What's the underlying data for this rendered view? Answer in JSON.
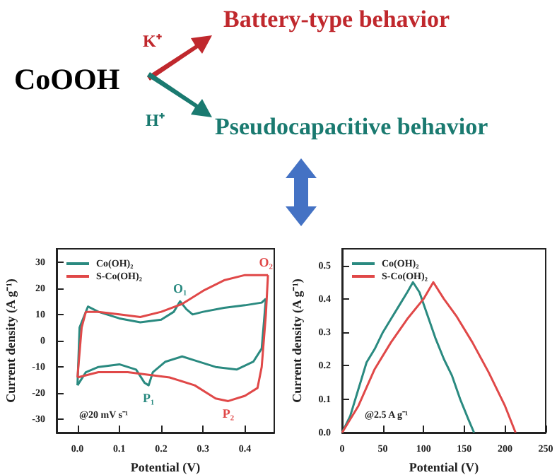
{
  "chart_data": [
    {
      "type": "line",
      "xlabel": "Potential (V)",
      "ylabel": "Current density (A g⁻¹)",
      "annotations": [
        "CoOOH",
        "K⁺",
        "H⁺",
        "Battery-type behavior",
        "Pseudocapacitive behavior",
        "@20 mV s⁻¹",
        {
          "text": "O₁",
          "x": 0.245,
          "y": 15
        },
        {
          "text": "O₂",
          "x": 0.45,
          "y": 25
        },
        {
          "text": "P₁",
          "x": 0.17,
          "y": -17
        },
        {
          "text": "P₂",
          "x": 0.36,
          "y": -23
        }
      ],
      "series": [
        {
          "name": "Co(OH)₂",
          "color": "#2a8a80",
          "x": [
            0.0,
            0.005,
            0.025,
            0.05,
            0.1,
            0.15,
            0.2,
            0.23,
            0.245,
            0.26,
            0.275,
            0.3,
            0.35,
            0.4,
            0.44,
            0.45
          ],
          "values": [
            -17,
            5,
            13,
            11,
            8.5,
            7,
            8,
            11,
            15,
            12,
            10,
            11,
            12.5,
            13.5,
            14.5,
            16
          ]
        },
        {
          "color": "#2a8a80",
          "x": [
            0.45,
            0.44,
            0.42,
            0.38,
            0.33,
            0.28,
            0.25,
            0.21,
            0.18,
            0.17,
            0.16,
            0.14,
            0.1,
            0.05,
            0.02,
            0.0
          ],
          "values": [
            16,
            -3,
            -8,
            -11,
            -10,
            -7.5,
            -6,
            -8,
            -12,
            -17,
            -16,
            -11,
            -9,
            -10,
            -12,
            -17
          ]
        },
        {
          "name": "S-Co(OH)₂",
          "color": "#e04848",
          "x": [
            0.0,
            0.01,
            0.02,
            0.05,
            0.1,
            0.15,
            0.2,
            0.25,
            0.3,
            0.35,
            0.4,
            0.45,
            0.455
          ],
          "values": [
            -14,
            5,
            11,
            11,
            10,
            9,
            11,
            14,
            19,
            23,
            25,
            25,
            25
          ]
        },
        {
          "color": "#e04848",
          "x": [
            0.455,
            0.45,
            0.44,
            0.43,
            0.4,
            0.36,
            0.33,
            0.28,
            0.22,
            0.17,
            0.12,
            0.05,
            0.0
          ],
          "values": [
            25,
            10,
            -10,
            -18,
            -21,
            -23,
            -22,
            -17,
            -14,
            -13,
            -12,
            -12,
            -14
          ]
        }
      ],
      "xlim": [
        -0.05,
        0.47
      ],
      "xticks": [
        {
          "value": 0,
          "label": "0.0"
        },
        0.1,
        0.2,
        0.3,
        0.4
      ],
      "ylim": [
        -35,
        35
      ],
      "yticks": [
        -30,
        -20,
        -10,
        0,
        10,
        20,
        30
      ],
      "legend": "top left",
      "marker": "none",
      "grid": false
    },
    {
      "type": "line",
      "xlabel": "Potential (V)",
      "ylabel": "Current density (A g⁻¹)",
      "annotations": [
        "@2.5 A g⁻¹"
      ],
      "series": [
        {
          "name": "Co(OH)₂",
          "color": "#2a8a80",
          "x": [
            0,
            10,
            20,
            30,
            40,
            50,
            60,
            70,
            80,
            87,
            95,
            105,
            115,
            125,
            135,
            145,
            155,
            162
          ],
          "values": [
            0,
            0.05,
            0.13,
            0.21,
            0.25,
            0.3,
            0.34,
            0.38,
            0.42,
            0.45,
            0.42,
            0.35,
            0.28,
            0.22,
            0.17,
            0.1,
            0.04,
            0
          ]
        },
        {
          "name": "S-Co(OH)₂",
          "color": "#e04848",
          "x": [
            0,
            20,
            40,
            60,
            80,
            100,
            112,
            125,
            140,
            160,
            180,
            200,
            213
          ],
          "values": [
            0,
            0.08,
            0.19,
            0.27,
            0.34,
            0.4,
            0.45,
            0.4,
            0.35,
            0.27,
            0.18,
            0.08,
            0
          ]
        }
      ],
      "xlim": [
        0,
        250
      ],
      "xticks": [
        0,
        50,
        100,
        150,
        200,
        250
      ],
      "ylim": [
        0,
        0.55
      ],
      "yticks": [
        {
          "value": 0,
          "label": "0.0"
        },
        0.1,
        0.2,
        0.3,
        0.4,
        0.5
      ],
      "legend": "top left",
      "marker": "none",
      "grid": false
    }
  ]
}
